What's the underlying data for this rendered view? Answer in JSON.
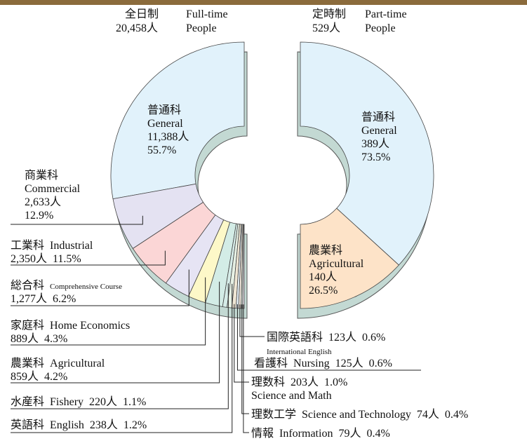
{
  "chart_data": [
    {
      "type": "pie",
      "title": "全日制",
      "subtitle": "Full-time",
      "total": 20458,
      "total_label": "20,458人",
      "unit_label": "People",
      "categories_ja": [
        "普通科",
        "商業科",
        "工業科",
        "総合科",
        "家庭科",
        "農業科",
        "水産科",
        "英語科",
        "理数科",
        "看護科",
        "国際英語科",
        "理数工学",
        "情報"
      ],
      "categories": [
        "General",
        "Commercial",
        "Industrial",
        "Comprehensive Course",
        "Home Economics",
        "Agricultural",
        "Fishery",
        "English",
        "Science and Math",
        "Nursing",
        "International English",
        "Science and Technology",
        "Information"
      ],
      "values": [
        11388,
        2633,
        2350,
        1277,
        889,
        859,
        220,
        238,
        203,
        125,
        123,
        74,
        79
      ],
      "value_labels": [
        "11,388人",
        "2,633人",
        "2,350人",
        "1,277人",
        "889人",
        "859人",
        "220人",
        "238人",
        "203人",
        "125人",
        "123人",
        "74人",
        "79人"
      ],
      "percent_labels": [
        "55.7%",
        "12.9%",
        "11.5%",
        "6.2%",
        "4.3%",
        "4.2%",
        "1.1%",
        "1.2%",
        "1.0%",
        "0.6%",
        "0.6%",
        "0.4%",
        "0.4%"
      ],
      "colors": [
        "#e1f2fb",
        "#e4e2f2",
        "#fbd6d6",
        "#e6e4f4",
        "#fdf8c8",
        "#d3ece6",
        "#d6ece8",
        "#e6f0e4",
        "#efe6d4",
        "#e2ecf2",
        "#f1e8dc",
        "#dde8e0",
        "#ece4ee"
      ]
    },
    {
      "type": "pie",
      "title": "定時制",
      "subtitle": "Part-time",
      "total": 529,
      "total_label": "529人",
      "unit_label": "People",
      "categories_ja": [
        "普通科",
        "農業科"
      ],
      "categories": [
        "General",
        "Agricultural"
      ],
      "values": [
        389,
        140
      ],
      "value_labels": [
        "389人",
        "140人"
      ],
      "percent_labels": [
        "73.5%",
        "26.5%"
      ],
      "colors": [
        "#e1f2fb",
        "#fde3c8"
      ]
    }
  ]
}
